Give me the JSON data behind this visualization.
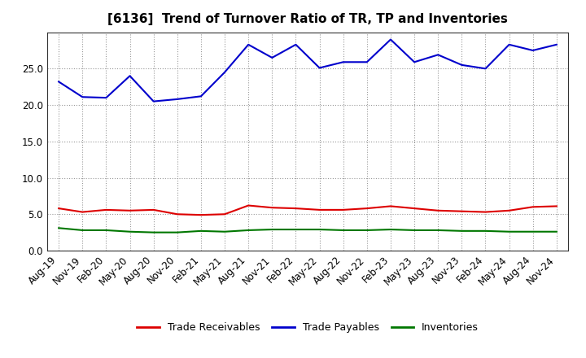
{
  "title": "[6136]  Trend of Turnover Ratio of TR, TP and Inventories",
  "labels": [
    "Aug-19",
    "Nov-19",
    "Feb-20",
    "May-20",
    "Aug-20",
    "Nov-20",
    "Feb-21",
    "May-21",
    "Aug-21",
    "Nov-21",
    "Feb-22",
    "May-22",
    "Aug-22",
    "Nov-22",
    "Feb-23",
    "May-23",
    "Aug-23",
    "Nov-23",
    "Feb-24",
    "May-24",
    "Aug-24",
    "Nov-24"
  ],
  "trade_receivables": [
    5.8,
    5.3,
    5.6,
    5.5,
    5.6,
    5.0,
    4.9,
    5.0,
    6.2,
    5.9,
    5.8,
    5.6,
    5.6,
    5.8,
    6.1,
    5.8,
    5.5,
    5.4,
    5.3,
    5.5,
    6.0,
    6.1
  ],
  "trade_payables": [
    23.2,
    21.1,
    21.0,
    24.0,
    20.5,
    20.8,
    21.2,
    24.5,
    28.3,
    26.5,
    28.3,
    25.1,
    25.9,
    25.9,
    29.0,
    25.9,
    26.9,
    25.5,
    25.0,
    28.3,
    27.5,
    28.3
  ],
  "inventories": [
    3.1,
    2.8,
    2.8,
    2.6,
    2.5,
    2.5,
    2.7,
    2.6,
    2.8,
    2.9,
    2.9,
    2.9,
    2.8,
    2.8,
    2.9,
    2.8,
    2.8,
    2.7,
    2.7,
    2.6,
    2.6,
    2.6
  ],
  "tr_color": "#dd0000",
  "tp_color": "#0000cc",
  "inv_color": "#007700",
  "background_color": "#ffffff",
  "grid_color": "#999999",
  "ylim": [
    0.0,
    30.0
  ],
  "yticks": [
    0.0,
    5.0,
    10.0,
    15.0,
    20.0,
    25.0
  ],
  "legend_labels": [
    "Trade Receivables",
    "Trade Payables",
    "Inventories"
  ],
  "title_fontsize": 11,
  "tick_fontsize": 8.5
}
